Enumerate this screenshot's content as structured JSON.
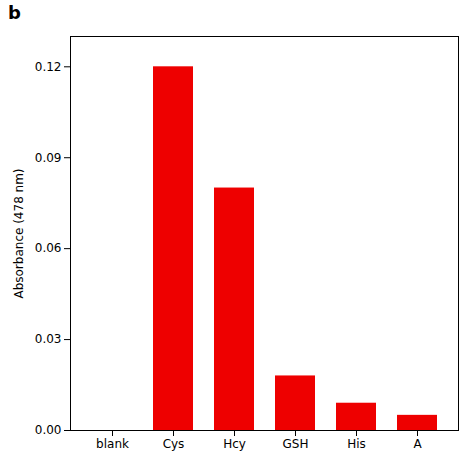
{
  "chart_data": {
    "type": "bar",
    "annotations": [
      "b"
    ],
    "ylabel": "Absorbance (478 nm)",
    "categories": [
      "blank",
      "Cys",
      "Hcy",
      "GSH",
      "His",
      "A"
    ],
    "values": [
      0.0,
      0.12,
      0.08,
      0.018,
      0.009,
      0.005
    ],
    "color": "#EE0000",
    "ylim": [
      0.0,
      0.13
    ],
    "yticks": [
      {
        "value": 0.0,
        "label": "0.00"
      },
      0.03,
      0.06,
      0.09,
      0.12
    ],
    "grid": false
  }
}
